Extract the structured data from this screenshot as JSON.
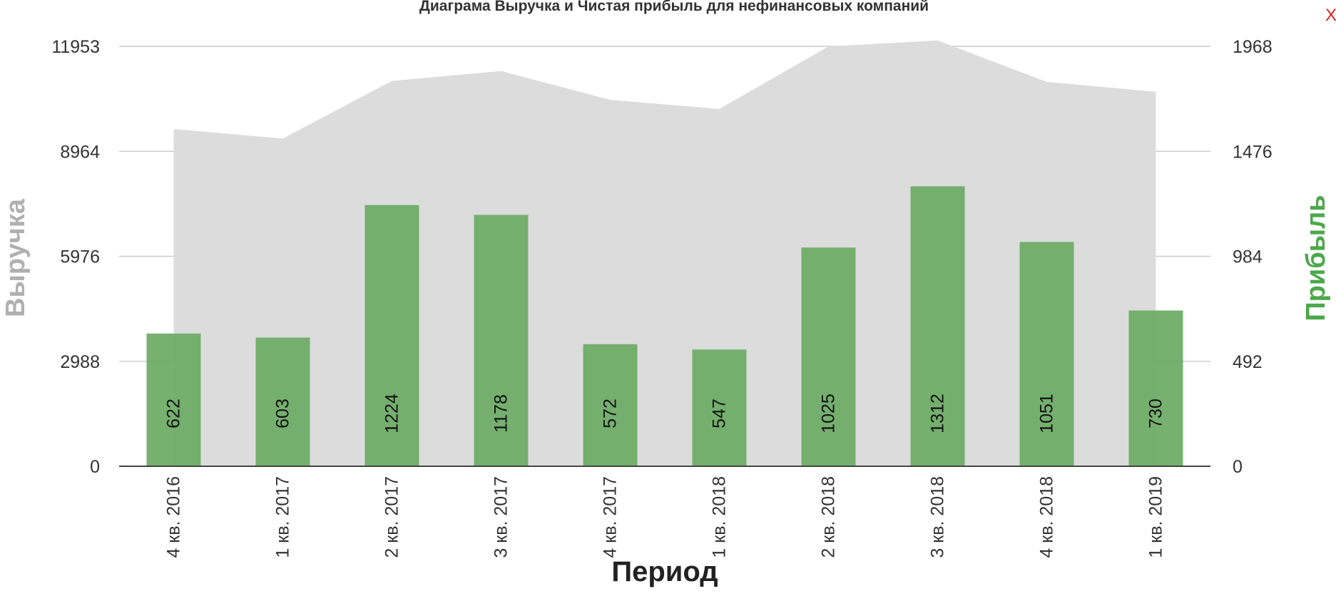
{
  "close_label": "X",
  "chart_data": {
    "type": "bar",
    "title": "Диаграма Выручка и Чистая прибыль для нефинансовых компаний",
    "xlabel": "Период",
    "ylabel_left": "Выручка",
    "ylabel_right": "Прибыль",
    "categories": [
      "4 кв. 2016",
      "1 кв. 2017",
      "2 кв. 2017",
      "3 кв. 2017",
      "4 кв. 2017",
      "1 кв. 2018",
      "2 кв. 2018",
      "3 кв. 2018",
      "4 кв. 2018",
      "1 кв. 2019"
    ],
    "left_axis": {
      "ticks": [
        "0",
        "2988",
        "5976",
        "8964",
        "11953"
      ],
      "ylim": [
        0,
        11953
      ]
    },
    "right_axis": {
      "ticks": [
        "0",
        "492",
        "984",
        "1476",
        "1968"
      ],
      "ylim": [
        0,
        1968
      ]
    },
    "series": [
      {
        "name": "Выручка",
        "type": "area",
        "axis": "left",
        "color": "#dcdcdc",
        "values": [
          9600,
          9330,
          10970,
          11250,
          10430,
          10170,
          11950,
          12120,
          10940,
          10660
        ]
      },
      {
        "name": "Прибыль",
        "type": "bar",
        "axis": "right",
        "color": "#6aaa64",
        "values": [
          622,
          603,
          1224,
          1178,
          572,
          547,
          1025,
          1312,
          1051,
          730
        ]
      }
    ],
    "grid": true
  }
}
